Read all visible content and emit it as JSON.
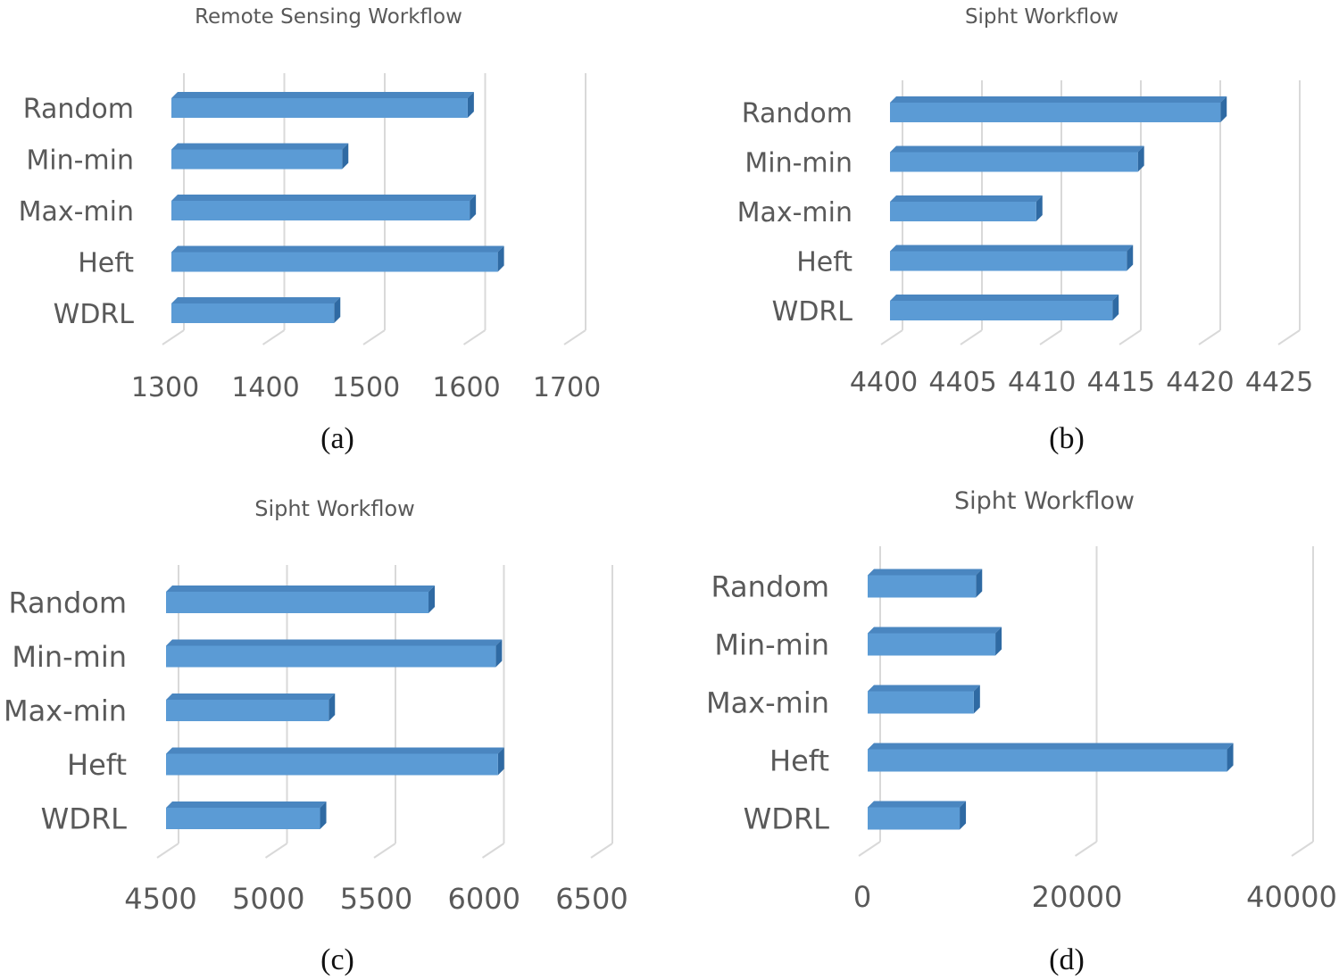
{
  "colors": {
    "bar_front": "#5b9bd5",
    "bar_top": "#4a86c0",
    "bar_side": "#2f6aa3",
    "grid": "#d9d9d9",
    "text": "#595959"
  },
  "chart_data": [
    {
      "type": "bar",
      "orientation": "horizontal",
      "panel_label": "(a)",
      "title": "Remote Sensing Workflow",
      "categories": [
        "Random",
        "Min-min",
        "Max-min",
        "Heft",
        "WDRL"
      ],
      "values": [
        1595,
        1470,
        1597,
        1625,
        1462
      ],
      "xlim": [
        1300,
        1700
      ],
      "ticks": [
        "1300",
        "1400",
        "1500",
        "1600",
        "1700"
      ],
      "grid": true
    },
    {
      "type": "bar",
      "orientation": "horizontal",
      "panel_label": "(b)",
      "title": "Sipht Workflow",
      "categories": [
        "Random",
        "Min-min",
        "Max-min",
        "Heft",
        "WDRL"
      ],
      "values": [
        4420.8,
        4415.6,
        4409.2,
        4414.9,
        4414.0
      ],
      "xlim": [
        4400,
        4425
      ],
      "ticks": [
        "4400",
        "4405",
        "4410",
        "4415",
        "4420",
        "4425"
      ],
      "grid": true
    },
    {
      "type": "bar",
      "orientation": "horizontal",
      "panel_label": "(c)",
      "title": "Sipht Workflow",
      "categories": [
        "Random",
        "Min-min",
        "Max-min",
        "Heft",
        "WDRL"
      ],
      "values": [
        5710,
        6020,
        5250,
        6030,
        5210
      ],
      "xlim": [
        4500,
        6500
      ],
      "ticks": [
        "4500",
        "5000",
        "5500",
        "6000",
        "6500"
      ],
      "grid": true
    },
    {
      "type": "bar",
      "orientation": "horizontal",
      "panel_label": "(d)",
      "title": "Sipht Workflow",
      "categories": [
        "Random",
        "Min-min",
        "Max-min",
        "Heft",
        "WDRL"
      ],
      "values": [
        10000,
        11800,
        9800,
        33200,
        8500
      ],
      "xlim": [
        0,
        40000
      ],
      "ticks": [
        "0",
        "20000",
        "40000"
      ],
      "grid": true
    }
  ]
}
